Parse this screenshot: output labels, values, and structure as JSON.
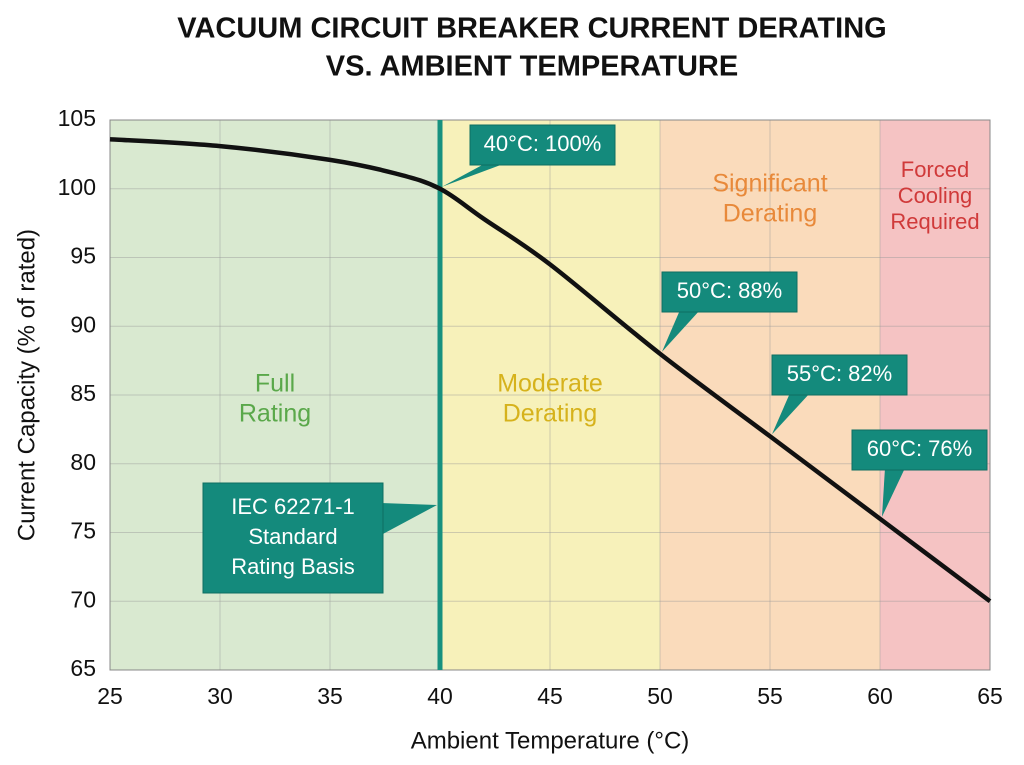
{
  "chart_data": {
    "type": "line",
    "title": [
      "VACUUM CIRCUIT BREAKER CURRENT DERATING",
      "VS. AMBIENT TEMPERATURE"
    ],
    "x_label": "Ambient Temperature (°C)",
    "y_label": "Current Capacity (% of rated)",
    "x": [
      25,
      30,
      35,
      38,
      40,
      42,
      45,
      50,
      55,
      60,
      65
    ],
    "series": [
      {
        "name": "Current capacity",
        "color": "#111111",
        "values": [
          103.6,
          103.1,
          102.1,
          101.1,
          100,
          97.8,
          94.5,
          88,
          82,
          76,
          70
        ]
      }
    ],
    "xlim": [
      25,
      65
    ],
    "ylim": [
      65,
      105
    ],
    "xticks": [
      25,
      30,
      35,
      40,
      45,
      50,
      55,
      60,
      65
    ],
    "yticks": [
      65,
      70,
      75,
      80,
      85,
      90,
      95,
      100,
      105
    ],
    "grid": true,
    "zones": [
      {
        "from": 25,
        "to": 40,
        "color": "#d9e9d0",
        "text_color": "#5aa84a",
        "label": [
          "Full",
          "Rating"
        ]
      },
      {
        "from": 40,
        "to": 50,
        "color": "#f7f1ba",
        "text_color": "#d6b21c",
        "label": [
          "Moderate",
          "Derating"
        ]
      },
      {
        "from": 50,
        "to": 60,
        "color": "#fadbbb",
        "text_color": "#e8893a",
        "label": [
          "Significant",
          "Derating"
        ]
      },
      {
        "from": 60,
        "to": 65,
        "color": "#f5c3c3",
        "text_color": "#d03a3a",
        "label": [
          "Forced",
          "Cooling",
          "Required"
        ]
      }
    ],
    "reference_line": {
      "x": 40,
      "color": "#17917f"
    },
    "annotation_color": "#148a7c",
    "annotations": [
      {
        "text": [
          "40°C: 100%"
        ],
        "x": 40,
        "y": 100
      },
      {
        "text": [
          "50°C: 88%"
        ],
        "x": 50,
        "y": 88
      },
      {
        "text": [
          "55°C: 82%"
        ],
        "x": 55,
        "y": 82
      },
      {
        "text": [
          "60°C: 76%"
        ],
        "x": 60,
        "y": 76
      },
      {
        "text": [
          "IEC 62271-1",
          "Standard",
          "Rating Basis"
        ],
        "x": 40,
        "y": 77
      }
    ]
  }
}
